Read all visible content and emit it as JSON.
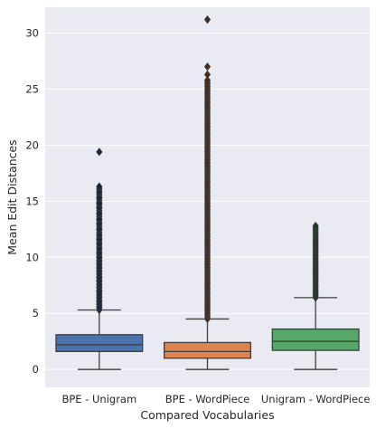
{
  "chart_data": {
    "type": "box",
    "xlabel": "Compared Vocabularies",
    "ylabel": "Mean Edit Distances",
    "ylim": [
      -1.6,
      32.3
    ],
    "yticks": [
      0,
      5,
      10,
      15,
      20,
      25,
      30
    ],
    "grid": true,
    "categories": [
      "BPE - Unigram",
      "BPE - WordPiece",
      "Unigram - WordPiece"
    ],
    "boxes": [
      {
        "name": "BPE - Unigram",
        "color": "#4c72b0",
        "min": 0,
        "q1": 1.6,
        "median": 2.2,
        "q3": 3.1,
        "max": 5.3,
        "outlier_range": [
          5.3,
          16.3
        ],
        "outliers": [
          5.5,
          5.8,
          6.1,
          6.4,
          6.7,
          7.0,
          7.3,
          7.6,
          7.9,
          8.2,
          8.5,
          8.8,
          9.1,
          9.4,
          9.7,
          10.0,
          10.4,
          10.8,
          11.2,
          11.6,
          12.0,
          12.5,
          13.0,
          13.4,
          13.9,
          14.4,
          14.8,
          15.3,
          15.8,
          16.3,
          19.4
        ]
      },
      {
        "name": "BPE - WordPiece",
        "color": "#dd8452",
        "min": 0,
        "q1": 1.0,
        "median": 1.6,
        "q3": 2.4,
        "max": 4.5,
        "outlier_range": [
          4.5,
          25.8
        ],
        "outliers": [
          26.3,
          27.0,
          31.2
        ]
      },
      {
        "name": "Unigram - WordPiece",
        "color": "#55a868",
        "min": 0,
        "q1": 1.7,
        "median": 2.5,
        "q3": 3.6,
        "max": 6.4,
        "outlier_range": [
          6.4,
          12.8
        ],
        "outliers": []
      }
    ]
  }
}
